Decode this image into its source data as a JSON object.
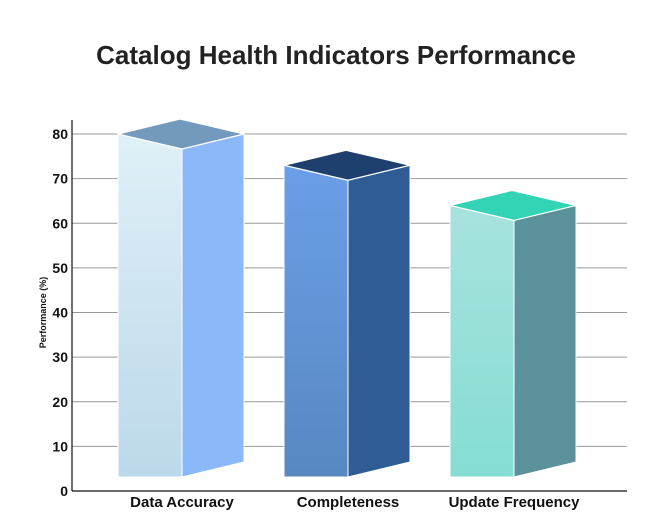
{
  "chart_data": {
    "type": "bar",
    "title": "Catalog Health Indicators Performance",
    "xlabel": "",
    "ylabel": "Performance (%)",
    "ylim": [
      0,
      80
    ],
    "yticks": [
      0,
      10,
      20,
      30,
      40,
      50,
      60,
      70,
      80
    ],
    "grid": true,
    "categories": [
      "Data Accuracy",
      "Completeness",
      "Update Frequency"
    ],
    "values": [
      80,
      73,
      64
    ],
    "colors": {
      "Data Accuracy": {
        "front_top": "#dff0f7",
        "front_bottom": "#bcd8ea",
        "side": "#8ab8f8",
        "top": "#7399bd"
      },
      "Completeness": {
        "front_top": "#6b9ee8",
        "front_bottom": "#5888c0",
        "side": "#2f5c94",
        "top": "#1f3f6e"
      },
      "Update Frequency": {
        "front_top": "#a8e2de",
        "front_bottom": "#85ddd2",
        "side": "#5a919b",
        "top": "#33d3b6"
      }
    }
  }
}
